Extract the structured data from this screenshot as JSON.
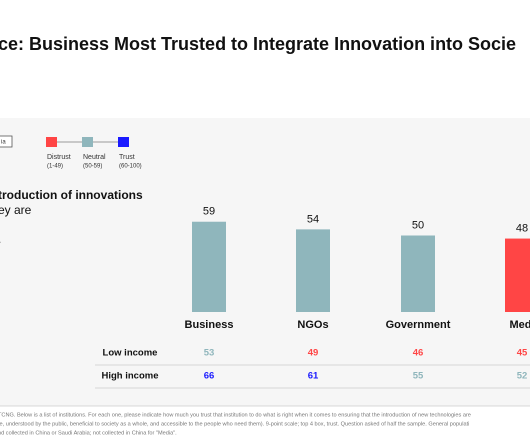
{
  "chart_data": {
    "type": "bar",
    "title": "ce: Business Most Trusted to Integrate Innovation into Socie",
    "legend_box": "ia",
    "legend": [
      {
        "name": "Distrust",
        "range": "(1-49)",
        "color": "#ff4545"
      },
      {
        "name": "Neutral",
        "range": "(50-59)",
        "color": "#8fb6bc"
      },
      {
        "name": "Trust",
        "range": "(60-100)",
        "color": "#1a1aff"
      }
    ],
    "side_text": [
      "troduction of innovations",
      "ey are",
      "."
    ],
    "categories": [
      "Business",
      "NGOs",
      "Government",
      "Medi"
    ],
    "values": [
      59,
      54,
      50,
      48
    ],
    "colors": [
      "#8fb6bc",
      "#8fb6bc",
      "#8fb6bc",
      "#ff4545"
    ],
    "rows": [
      {
        "label": "Low income",
        "values": [
          53,
          49,
          46,
          45
        ],
        "colors": [
          "#8fb6bc",
          "#ff4545",
          "#ff4545",
          "#ff4545"
        ]
      },
      {
        "label": "High income",
        "values": [
          66,
          61,
          55,
          52
        ],
        "colors": [
          "#1a1aff",
          "#1a1aff",
          "#8fb6bc",
          "#8fb6bc"
        ]
      }
    ]
  },
  "footnote": [
    "TCNG. Below is a list of institutions. For each one, please indicate how much you trust that institution to do what is right when it comes to ensuring that the introduction of new technologies are",
    "fe, understood by the public, beneficial to society as a whole, and accessible to the people who need them). 9-point scale; top 4 box, trust. Question asked of half the sample. General populati",
    "nd collected in China or Saudi Arabia; not collected in China for \"Media\"."
  ]
}
